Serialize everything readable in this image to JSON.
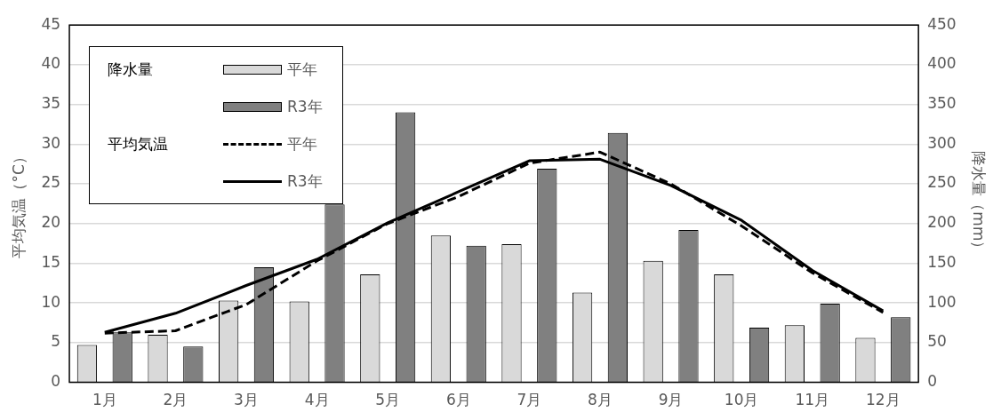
{
  "chart_data": {
    "type": "bar",
    "categories": [
      "1月",
      "2月",
      "3月",
      "4月",
      "5月",
      "6月",
      "7月",
      "8月",
      "9月",
      "10月",
      "11月",
      "12月"
    ],
    "series": [
      {
        "name": "平年",
        "axis": "y2",
        "color": "#d9d9d9",
        "values": [
          47,
          60,
          103,
          102,
          136,
          185,
          174,
          113,
          153,
          136,
          72,
          56
        ]
      },
      {
        "name": "R3年",
        "axis": "y2",
        "color": "#808080",
        "values": [
          63,
          45,
          145,
          224,
          340,
          172,
          269,
          314,
          192,
          69,
          99,
          82
        ]
      },
      {
        "name": "平年",
        "type": "line",
        "axis": "y",
        "color": "#000000",
        "line_style": "dashed",
        "values": [
          6.2,
          6.5,
          9.8,
          15.3,
          20.0,
          23.4,
          27.6,
          29.0,
          25.0,
          19.7,
          13.8,
          8.8
        ]
      },
      {
        "name": "R3年",
        "type": "line",
        "axis": "y",
        "color": "#000000",
        "line_style": "solid",
        "values": [
          6.3,
          8.7,
          12.2,
          15.5,
          20.1,
          24.0,
          27.9,
          28.1,
          24.8,
          20.4,
          14.1,
          9.0
        ]
      }
    ],
    "ylabel": "平均気温（°C）",
    "y2label": "降水量（mm）",
    "ylim": [
      0,
      45
    ],
    "yticks": [
      0,
      5,
      10,
      15,
      20,
      25,
      30,
      35,
      40,
      45
    ],
    "y2lim": [
      0,
      450
    ],
    "y2ticks": [
      0,
      50,
      100,
      150,
      200,
      250,
      300,
      350,
      400,
      450
    ],
    "grid": "y",
    "legend": "top left",
    "marker": "none",
    "annotations": [
      "降水量",
      "平均気温"
    ]
  }
}
